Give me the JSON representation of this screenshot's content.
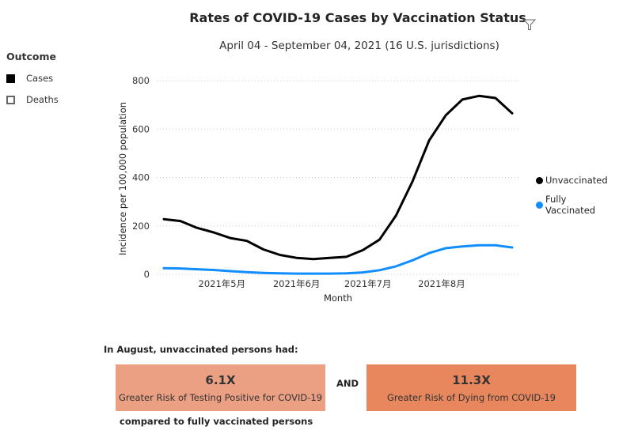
{
  "header": {
    "title": "Rates of COVID-19 Cases by Vaccination Status",
    "subtitle": "April 04 - September 04, 2021 (16 U.S. jurisdictions)",
    "filter_icon": "filter-icon"
  },
  "slicer": {
    "title": "Outcome",
    "items": [
      {
        "label": "Cases",
        "checked": true
      },
      {
        "label": "Deaths",
        "checked": false
      }
    ]
  },
  "chart_data": {
    "type": "line",
    "title": "Rates of COVID-19 Cases by Vaccination Status",
    "xlabel": "Month",
    "ylabel": "Incidence per 100,000 population",
    "ylim": [
      0,
      800
    ],
    "yticks": [
      0,
      200,
      400,
      600,
      800
    ],
    "xtick_labels": [
      {
        "label": "2021年5月",
        "index": 3.5
      },
      {
        "label": "2021年6月",
        "index": 8
      },
      {
        "label": "2021年7月",
        "index": 12.3
      },
      {
        "label": "2021年8月",
        "index": 16.75
      }
    ],
    "x": [
      1,
      2,
      3,
      4,
      5,
      6,
      7,
      8,
      9,
      10,
      11,
      12,
      13,
      14,
      15,
      16,
      17,
      18,
      19,
      20,
      21,
      22
    ],
    "grid": true,
    "legend_position": "right",
    "series": [
      {
        "name": "Unvaccinated",
        "color": "#000000",
        "values": [
          228,
          220,
          192,
          173,
          150,
          138,
          103,
          80,
          68,
          63,
          68,
          72,
          100,
          143,
          243,
          385,
          553,
          657,
          722,
          737,
          728,
          665
        ]
      },
      {
        "name": "Fully Vaccinated",
        "color": "#118DFF",
        "values": [
          25,
          24,
          21,
          18,
          13,
          9,
          6,
          4,
          3,
          3,
          3,
          4,
          8,
          17,
          33,
          58,
          88,
          108,
          115,
          120,
          120,
          111
        ]
      }
    ]
  },
  "summary": {
    "intro": "In August, unvaccinated persons had:",
    "cards": [
      {
        "value": "6.1X",
        "label": "Greater Risk of Testing Positive for COVID-19",
        "color": "#EBA083"
      },
      {
        "value": "11.3X",
        "label": "Greater Risk of Dying from COVID-19",
        "color": "#E8875E"
      }
    ],
    "and_label": "AND",
    "outro": "compared to fully vaccinated persons"
  }
}
